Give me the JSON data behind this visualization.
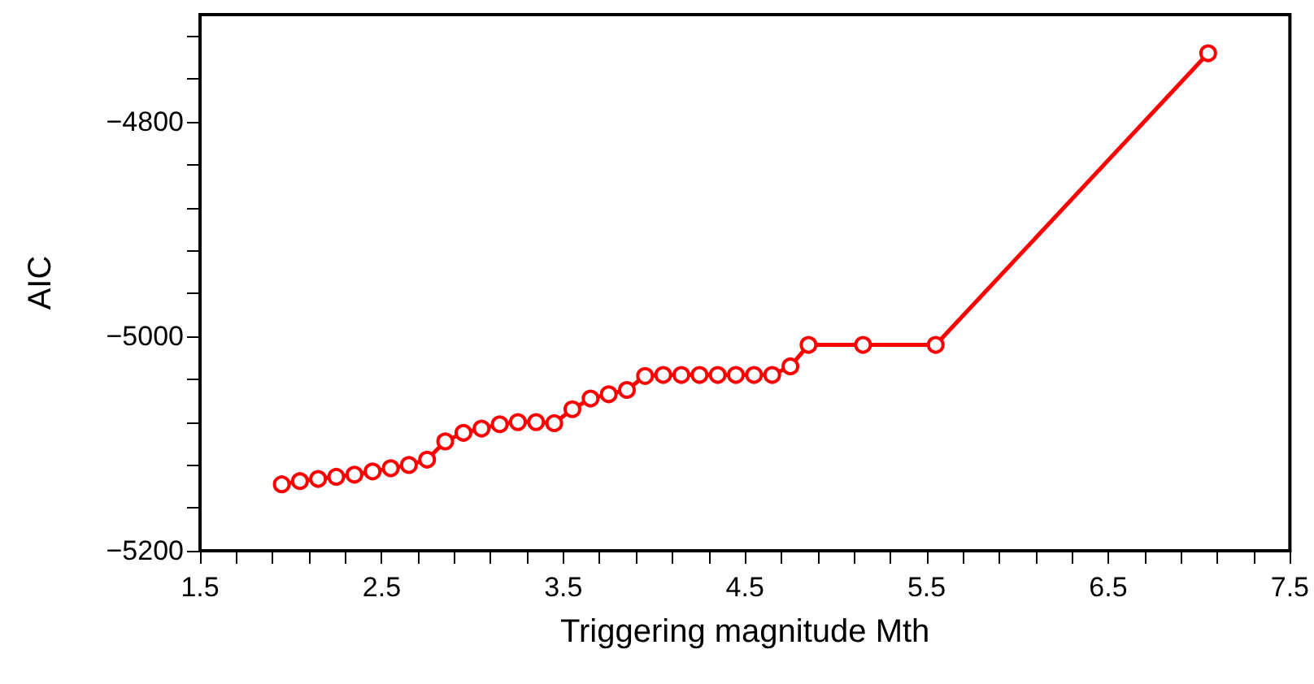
{
  "chart_data": {
    "type": "line",
    "xlabel": "Triggering magnitude Mth",
    "ylabel": "AIC",
    "x": [
      1.95,
      2.05,
      2.15,
      2.25,
      2.35,
      2.45,
      2.55,
      2.65,
      2.75,
      2.85,
      2.95,
      3.05,
      3.15,
      3.25,
      3.35,
      3.45,
      3.55,
      3.65,
      3.75,
      3.85,
      3.95,
      4.05,
      4.15,
      4.25,
      4.35,
      4.45,
      4.55,
      4.65,
      4.75,
      4.85,
      5.15,
      5.55,
      7.05
    ],
    "series": [
      {
        "color": "#ff0000",
        "values": [
          -5138,
          -5135,
          -5133,
          -5131,
          -5129,
          -5126,
          -5123,
          -5120,
          -5115,
          -5098,
          -5090,
          -5086,
          -5082,
          -5080,
          -5080,
          -5081,
          -5068,
          -5058,
          -5054,
          -5050,
          -5037,
          -5036,
          -5036,
          -5036,
          -5036,
          -5036,
          -5036,
          -5036,
          -5028,
          -5008,
          -5008,
          -5008,
          -4736
        ]
      }
    ],
    "xlim": [
      1.5,
      7.5
    ],
    "xticks": [
      1.5,
      {
        "value": 1.7,
        "label": null
      },
      {
        "value": 1.9,
        "label": null
      },
      {
        "value": 2.1,
        "label": null
      },
      {
        "value": 2.3,
        "label": null
      },
      2.5,
      {
        "value": 2.7,
        "label": null
      },
      {
        "value": 2.9,
        "label": null
      },
      {
        "value": 3.1,
        "label": null
      },
      {
        "value": 3.3,
        "label": null
      },
      3.5,
      {
        "value": 3.7,
        "label": null
      },
      {
        "value": 3.9,
        "label": null
      },
      {
        "value": 4.1,
        "label": null
      },
      {
        "value": 4.3,
        "label": null
      },
      4.5,
      {
        "value": 4.7,
        "label": null
      },
      {
        "value": 4.9,
        "label": null
      },
      {
        "value": 5.1,
        "label": null
      },
      {
        "value": 5.3,
        "label": null
      },
      5.5,
      {
        "value": 5.7,
        "label": null
      },
      {
        "value": 5.9,
        "label": null
      },
      {
        "value": 6.1,
        "label": null
      },
      {
        "value": 6.3,
        "label": null
      },
      6.5,
      {
        "value": 6.7,
        "label": null
      },
      {
        "value": 6.9,
        "label": null
      },
      {
        "value": 7.1,
        "label": null
      },
      {
        "value": 7.3,
        "label": null
      },
      7.5
    ],
    "ylim": [
      -5200,
      -4700
    ],
    "yticks": [
      -5200,
      {
        "value": -5160,
        "label": null
      },
      {
        "value": -5120,
        "label": null
      },
      {
        "value": -5080,
        "label": null
      },
      {
        "value": -5040,
        "label": null
      },
      -5000,
      {
        "value": -4960,
        "label": null
      },
      {
        "value": -4920,
        "label": null
      },
      {
        "value": -4880,
        "label": null
      },
      {
        "value": -4840,
        "label": null
      },
      -4800,
      {
        "value": -4760,
        "label": null
      },
      {
        "value": -4720,
        "label": null
      }
    ],
    "grid": false,
    "marker": "circle",
    "line_style": "solid"
  }
}
